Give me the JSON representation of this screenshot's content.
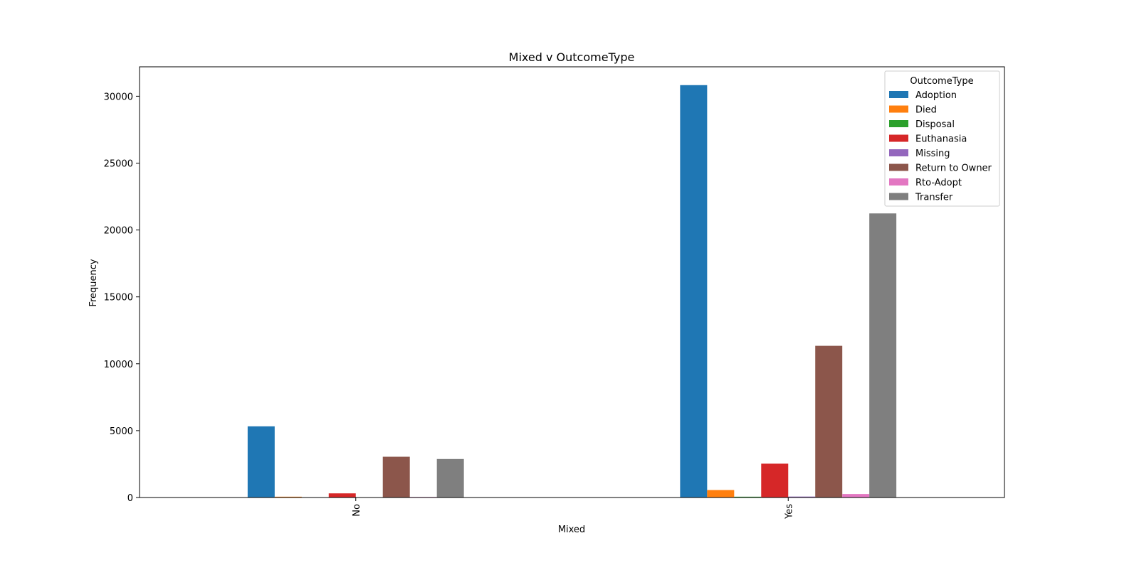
{
  "chart_data": {
    "type": "bar",
    "title": "Mixed v OutcomeType",
    "xlabel": "Mixed",
    "ylabel": "Frequency",
    "categories": [
      "No",
      "Yes"
    ],
    "ylim": [
      0,
      32200
    ],
    "yticks": [
      0,
      5000,
      10000,
      15000,
      20000,
      25000,
      30000
    ],
    "ytick_labels": [
      "0",
      "5000",
      "10000",
      "15000",
      "20000",
      "25000",
      "30000"
    ],
    "grid": false,
    "legend": {
      "title": "OutcomeType",
      "placement": "top-right"
    },
    "series": [
      {
        "name": "Adoption",
        "color": "#1f77b4",
        "values": [
          5320,
          30830
        ]
      },
      {
        "name": "Died",
        "color": "#ff7f0e",
        "values": [
          60,
          560
        ]
      },
      {
        "name": "Disposal",
        "color": "#2ca02c",
        "values": [
          10,
          60
        ]
      },
      {
        "name": "Euthanasia",
        "color": "#d62728",
        "values": [
          310,
          2530
        ]
      },
      {
        "name": "Missing",
        "color": "#9467bd",
        "values": [
          10,
          70
        ]
      },
      {
        "name": "Return to Owner",
        "color": "#8c564b",
        "values": [
          3050,
          11340
        ]
      },
      {
        "name": "Rto-Adopt",
        "color": "#e377c2",
        "values": [
          40,
          260
        ]
      },
      {
        "name": "Transfer",
        "color": "#7f7f7f",
        "values": [
          2880,
          21240
        ]
      }
    ]
  }
}
